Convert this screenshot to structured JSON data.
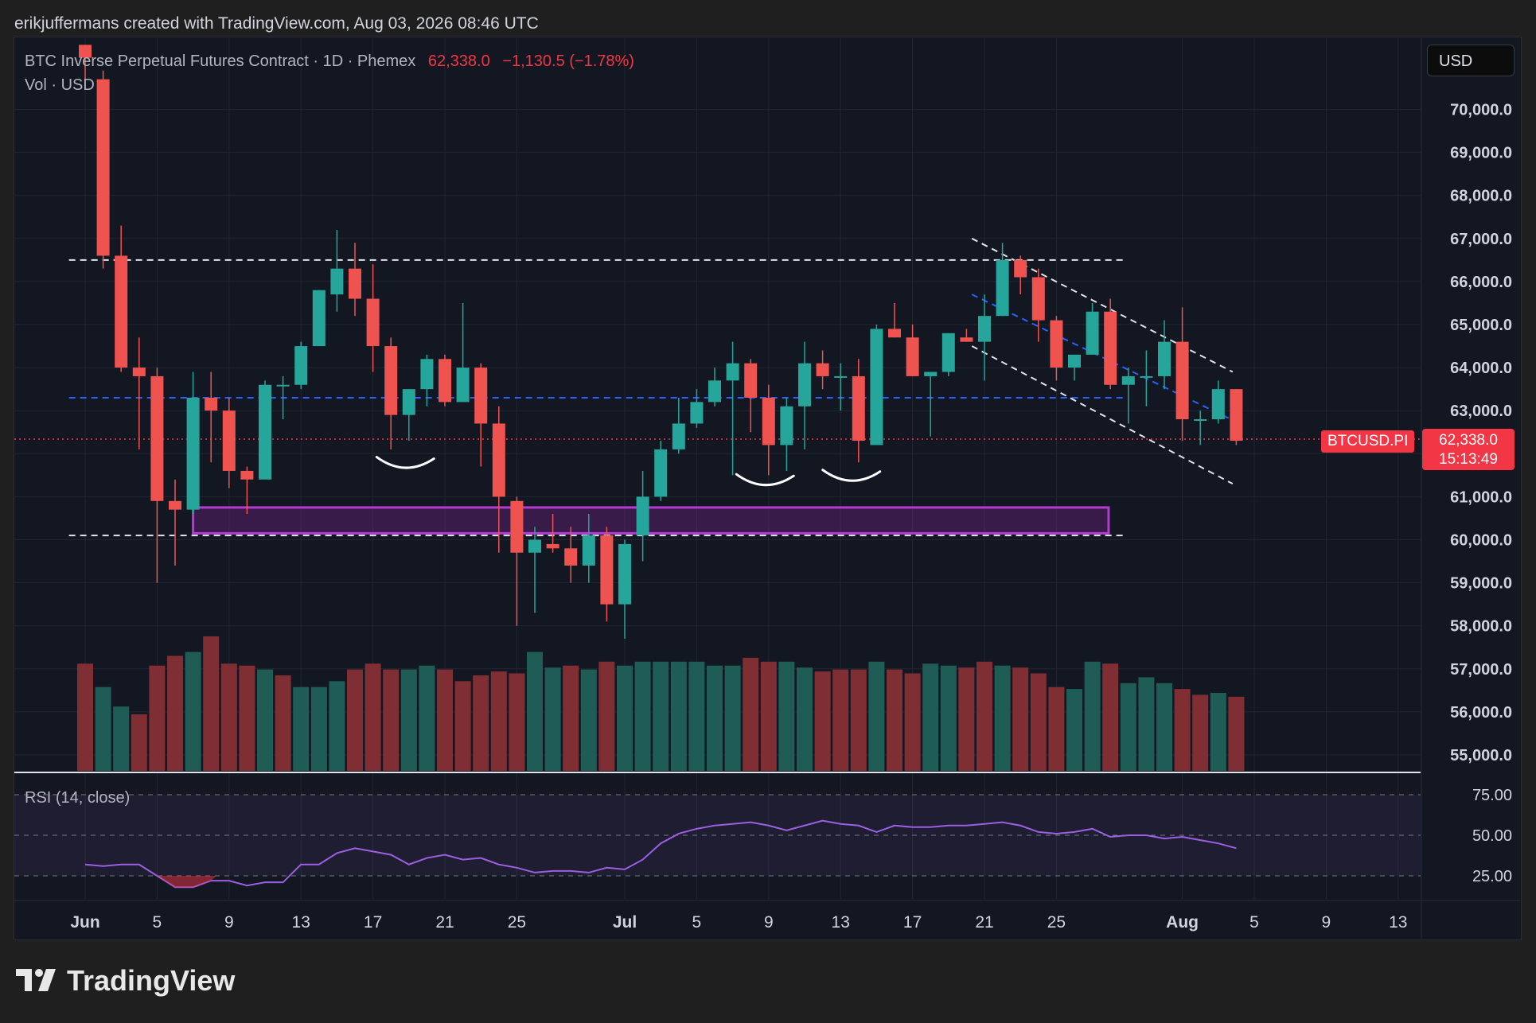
{
  "header": {
    "text": "erikjuffermans created with TradingView.com, Aug 03, 2026 08:46 UTC"
  },
  "legend": {
    "symbol": "BTC Inverse Perpetual Futures Contract · 1D · Phemex",
    "price": "62,338.0",
    "change": "−1,130.5 (−1.78%)",
    "volume_label": "Vol · USD"
  },
  "currency_button": "USD",
  "price_tag": {
    "symbol": "BTCUSD.PI",
    "price": "62,338.0",
    "countdown": "15:13:49"
  },
  "rsi_label": "RSI (14, close)",
  "brand": "TradingView",
  "colors": {
    "up": "#26a69a",
    "down": "#ef5350",
    "purple": "#9c27b0",
    "blue": "#2962ff",
    "bg": "#131722"
  },
  "chart_data": {
    "type": "candlestick",
    "interval": "1D",
    "y_ticks": [
      55000,
      56000,
      57000,
      58000,
      59000,
      60000,
      61000,
      62000,
      63000,
      64000,
      65000,
      66000,
      67000,
      68000,
      69000,
      70000
    ],
    "y_tick_labels": [
      "55,000.0",
      "56,000.0",
      "57,000.0",
      "58,000.0",
      "59,000.0",
      "60,000.0",
      "61,000.0",
      "62,000.0",
      "63,000.0",
      "64,000.0",
      "65,000.0",
      "66,000.0",
      "67,000.0",
      "68,000.0",
      "69,000.0",
      "70,000.0"
    ],
    "x_ticks": [
      {
        "label": "Jun",
        "day": 0,
        "bold": true
      },
      {
        "label": "5",
        "day": 4
      },
      {
        "label": "9",
        "day": 8
      },
      {
        "label": "13",
        "day": 12
      },
      {
        "label": "17",
        "day": 16
      },
      {
        "label": "21",
        "day": 20
      },
      {
        "label": "25",
        "day": 24
      },
      {
        "label": "Jul",
        "day": 30,
        "bold": true
      },
      {
        "label": "5",
        "day": 34
      },
      {
        "label": "9",
        "day": 38
      },
      {
        "label": "13",
        "day": 42
      },
      {
        "label": "17",
        "day": 46
      },
      {
        "label": "21",
        "day": 50
      },
      {
        "label": "25",
        "day": 54
      },
      {
        "label": "Aug",
        "day": 61,
        "bold": true
      },
      {
        "label": "5",
        "day": 65
      },
      {
        "label": "9",
        "day": 69
      },
      {
        "label": "13",
        "day": 73
      }
    ],
    "candles": [
      {
        "d": 0,
        "o": 71500,
        "h": 71500,
        "c": 71200,
        "l": 70700
      },
      {
        "d": 1,
        "o": 70700,
        "h": 70900,
        "c": 66600,
        "l": 66300
      },
      {
        "d": 2,
        "o": 66600,
        "h": 67300,
        "c": 64000,
        "l": 63900
      },
      {
        "d": 3,
        "o": 64000,
        "h": 64700,
        "c": 63800,
        "l": 62100
      },
      {
        "d": 4,
        "o": 63800,
        "h": 64000,
        "c": 60900,
        "l": 59000
      },
      {
        "d": 5,
        "o": 60900,
        "h": 61400,
        "c": 60700,
        "l": 59400
      },
      {
        "d": 6,
        "o": 60700,
        "h": 63900,
        "c": 63300,
        "l": 60600
      },
      {
        "d": 7,
        "o": 63300,
        "h": 63900,
        "c": 63000,
        "l": 61800
      },
      {
        "d": 8,
        "o": 63000,
        "h": 63300,
        "c": 61600,
        "l": 61200
      },
      {
        "d": 9,
        "o": 61600,
        "h": 61700,
        "c": 61400,
        "l": 60600
      },
      {
        "d": 10,
        "o": 61400,
        "h": 63700,
        "c": 63600,
        "l": 61400
      },
      {
        "d": 11,
        "o": 63600,
        "h": 63800,
        "c": 63600,
        "l": 62800
      },
      {
        "d": 12,
        "o": 63600,
        "h": 64600,
        "c": 64500,
        "l": 63500
      },
      {
        "d": 13,
        "o": 64500,
        "h": 65800,
        "c": 65800,
        "l": 64500
      },
      {
        "d": 14,
        "o": 65700,
        "h": 67200,
        "c": 66300,
        "l": 65300
      },
      {
        "d": 15,
        "o": 66300,
        "h": 66900,
        "c": 65600,
        "l": 65200
      },
      {
        "d": 16,
        "o": 65600,
        "h": 66400,
        "c": 64500,
        "l": 63900
      },
      {
        "d": 17,
        "o": 64500,
        "h": 64700,
        "c": 62900,
        "l": 62100
      },
      {
        "d": 18,
        "o": 62900,
        "h": 63500,
        "c": 63500,
        "l": 62300
      },
      {
        "d": 19,
        "o": 63500,
        "h": 64300,
        "c": 64200,
        "l": 63100
      },
      {
        "d": 20,
        "o": 64200,
        "h": 64300,
        "c": 63200,
        "l": 63100
      },
      {
        "d": 21,
        "o": 63200,
        "h": 65500,
        "c": 64000,
        "l": 63200
      },
      {
        "d": 22,
        "o": 64000,
        "h": 64100,
        "c": 62700,
        "l": 61700
      },
      {
        "d": 23,
        "o": 62700,
        "h": 63100,
        "c": 61000,
        "l": 59700
      },
      {
        "d": 24,
        "o": 60900,
        "h": 61000,
        "c": 59700,
        "l": 58000
      },
      {
        "d": 25,
        "o": 59700,
        "h": 60300,
        "c": 60000,
        "l": 58300
      },
      {
        "d": 26,
        "o": 59900,
        "h": 60600,
        "c": 59800,
        "l": 59700
      },
      {
        "d": 27,
        "o": 59800,
        "h": 60300,
        "c": 59400,
        "l": 59000
      },
      {
        "d": 28,
        "o": 59400,
        "h": 60600,
        "c": 60100,
        "l": 59000
      },
      {
        "d": 29,
        "o": 60100,
        "h": 60300,
        "c": 58500,
        "l": 58100
      },
      {
        "d": 30,
        "o": 58500,
        "h": 60000,
        "c": 59900,
        "l": 57700
      },
      {
        "d": 31,
        "o": 60100,
        "h": 61600,
        "c": 61000,
        "l": 59500
      },
      {
        "d": 32,
        "o": 61000,
        "h": 62300,
        "c": 62100,
        "l": 60900
      },
      {
        "d": 33,
        "o": 62100,
        "h": 63300,
        "c": 62700,
        "l": 62000
      },
      {
        "d": 34,
        "o": 62700,
        "h": 63500,
        "c": 63200,
        "l": 62600
      },
      {
        "d": 35,
        "o": 63200,
        "h": 64000,
        "c": 63700,
        "l": 63100
      },
      {
        "d": 36,
        "o": 63700,
        "h": 64600,
        "c": 64100,
        "l": 61500
      },
      {
        "d": 37,
        "o": 64100,
        "h": 64200,
        "c": 63300,
        "l": 62500
      },
      {
        "d": 38,
        "o": 63300,
        "h": 63600,
        "c": 62200,
        "l": 61500
      },
      {
        "d": 39,
        "o": 62200,
        "h": 63300,
        "c": 63100,
        "l": 61600
      },
      {
        "d": 40,
        "o": 63100,
        "h": 64600,
        "c": 64100,
        "l": 62100
      },
      {
        "d": 41,
        "o": 64100,
        "h": 64400,
        "c": 63800,
        "l": 63500
      },
      {
        "d": 42,
        "o": 63800,
        "h": 64100,
        "c": 63800,
        "l": 63000
      },
      {
        "d": 43,
        "o": 63800,
        "h": 64200,
        "c": 62300,
        "l": 61800
      },
      {
        "d": 44,
        "o": 62200,
        "h": 65000,
        "c": 64900,
        "l": 62200
      },
      {
        "d": 45,
        "o": 64900,
        "h": 65500,
        "c": 64700,
        "l": 64700
      },
      {
        "d": 46,
        "o": 64700,
        "h": 65000,
        "c": 63800,
        "l": 63800
      },
      {
        "d": 47,
        "o": 63800,
        "h": 63900,
        "c": 63900,
        "l": 62400
      },
      {
        "d": 48,
        "o": 63900,
        "h": 64800,
        "c": 64800,
        "l": 63800
      },
      {
        "d": 49,
        "o": 64700,
        "h": 64900,
        "c": 64600,
        "l": 64600
      },
      {
        "d": 50,
        "o": 64600,
        "h": 65700,
        "c": 65200,
        "l": 63700
      },
      {
        "d": 51,
        "o": 65200,
        "h": 66900,
        "c": 66500,
        "l": 65200
      },
      {
        "d": 52,
        "o": 66500,
        "h": 66600,
        "c": 66100,
        "l": 65700
      },
      {
        "d": 53,
        "o": 66100,
        "h": 66300,
        "c": 65100,
        "l": 64600
      },
      {
        "d": 54,
        "o": 65100,
        "h": 65200,
        "c": 64000,
        "l": 63700
      },
      {
        "d": 55,
        "o": 64000,
        "h": 64300,
        "c": 64300,
        "l": 63700
      },
      {
        "d": 56,
        "o": 64300,
        "h": 65500,
        "c": 65300,
        "l": 64300
      },
      {
        "d": 57,
        "o": 65300,
        "h": 65600,
        "c": 63600,
        "l": 63500
      },
      {
        "d": 58,
        "o": 63600,
        "h": 64000,
        "c": 63800,
        "l": 62700
      },
      {
        "d": 59,
        "o": 63800,
        "h": 64400,
        "c": 63800,
        "l": 63100
      },
      {
        "d": 60,
        "o": 63800,
        "h": 65100,
        "c": 64600,
        "l": 63500
      },
      {
        "d": 61,
        "o": 64600,
        "h": 65400,
        "c": 62800,
        "l": 62300
      },
      {
        "d": 62,
        "o": 62800,
        "h": 63000,
        "c": 62800,
        "l": 62200
      },
      {
        "d": 63,
        "o": 62800,
        "h": 63700,
        "c": 63500,
        "l": 62700
      },
      {
        "d": 64,
        "o": 63500,
        "h": 63500,
        "c": 62300,
        "l": 62200
      }
    ],
    "volume": [
      55,
      43,
      33,
      29,
      54,
      59,
      61,
      69,
      55,
      54,
      52,
      49,
      43,
      43,
      46,
      52,
      55,
      52,
      52,
      54,
      52,
      46,
      49,
      51,
      50,
      61,
      53,
      54,
      52,
      56,
      54,
      56,
      56,
      56,
      56,
      54,
      54,
      58,
      56,
      56,
      53,
      51,
      52,
      52,
      56,
      52,
      50,
      55,
      54,
      53,
      56,
      54,
      53,
      50,
      43,
      42,
      56,
      55,
      45,
      48,
      45,
      42,
      39,
      40,
      38
    ],
    "volume_up_days": [
      1,
      2,
      6,
      10,
      12,
      13,
      14,
      18,
      19,
      25,
      26,
      28,
      30,
      31,
      32,
      33,
      34,
      35,
      36,
      39,
      40,
      44,
      47,
      48,
      51,
      55,
      56,
      58,
      59,
      60,
      63
    ],
    "rsi": [
      32,
      31,
      32,
      32,
      25,
      18,
      18,
      22,
      22,
      19,
      21,
      21,
      32,
      32,
      39,
      42,
      40,
      38,
      32,
      36,
      38,
      35,
      36,
      32,
      30,
      27,
      28,
      28,
      27,
      30,
      29,
      35,
      45,
      51,
      54,
      56,
      57,
      58,
      56,
      53,
      56,
      59,
      57,
      56,
      52,
      56,
      55,
      55,
      56,
      56,
      57,
      58,
      56,
      52,
      51,
      52,
      54,
      49,
      50,
      50,
      48,
      49,
      47,
      45,
      42
    ],
    "rsi_ticks": [
      "25.00",
      "50.00",
      "75.00"
    ],
    "annotations": {
      "resistance_level": 66500,
      "support_level": 60100,
      "mid_level": 63300,
      "current_price_line": 62338,
      "demand_zone": [
        60150,
        60750
      ],
      "descending_channel": {
        "upper": [
          [
            49.3,
            67000
          ],
          [
            63.8,
            63900
          ]
        ],
        "lower": [
          [
            49.3,
            64500
          ],
          [
            63.8,
            61300
          ]
        ],
        "mid": [
          [
            49.3,
            65700
          ],
          [
            64.2,
            62700
          ]
        ]
      }
    }
  }
}
